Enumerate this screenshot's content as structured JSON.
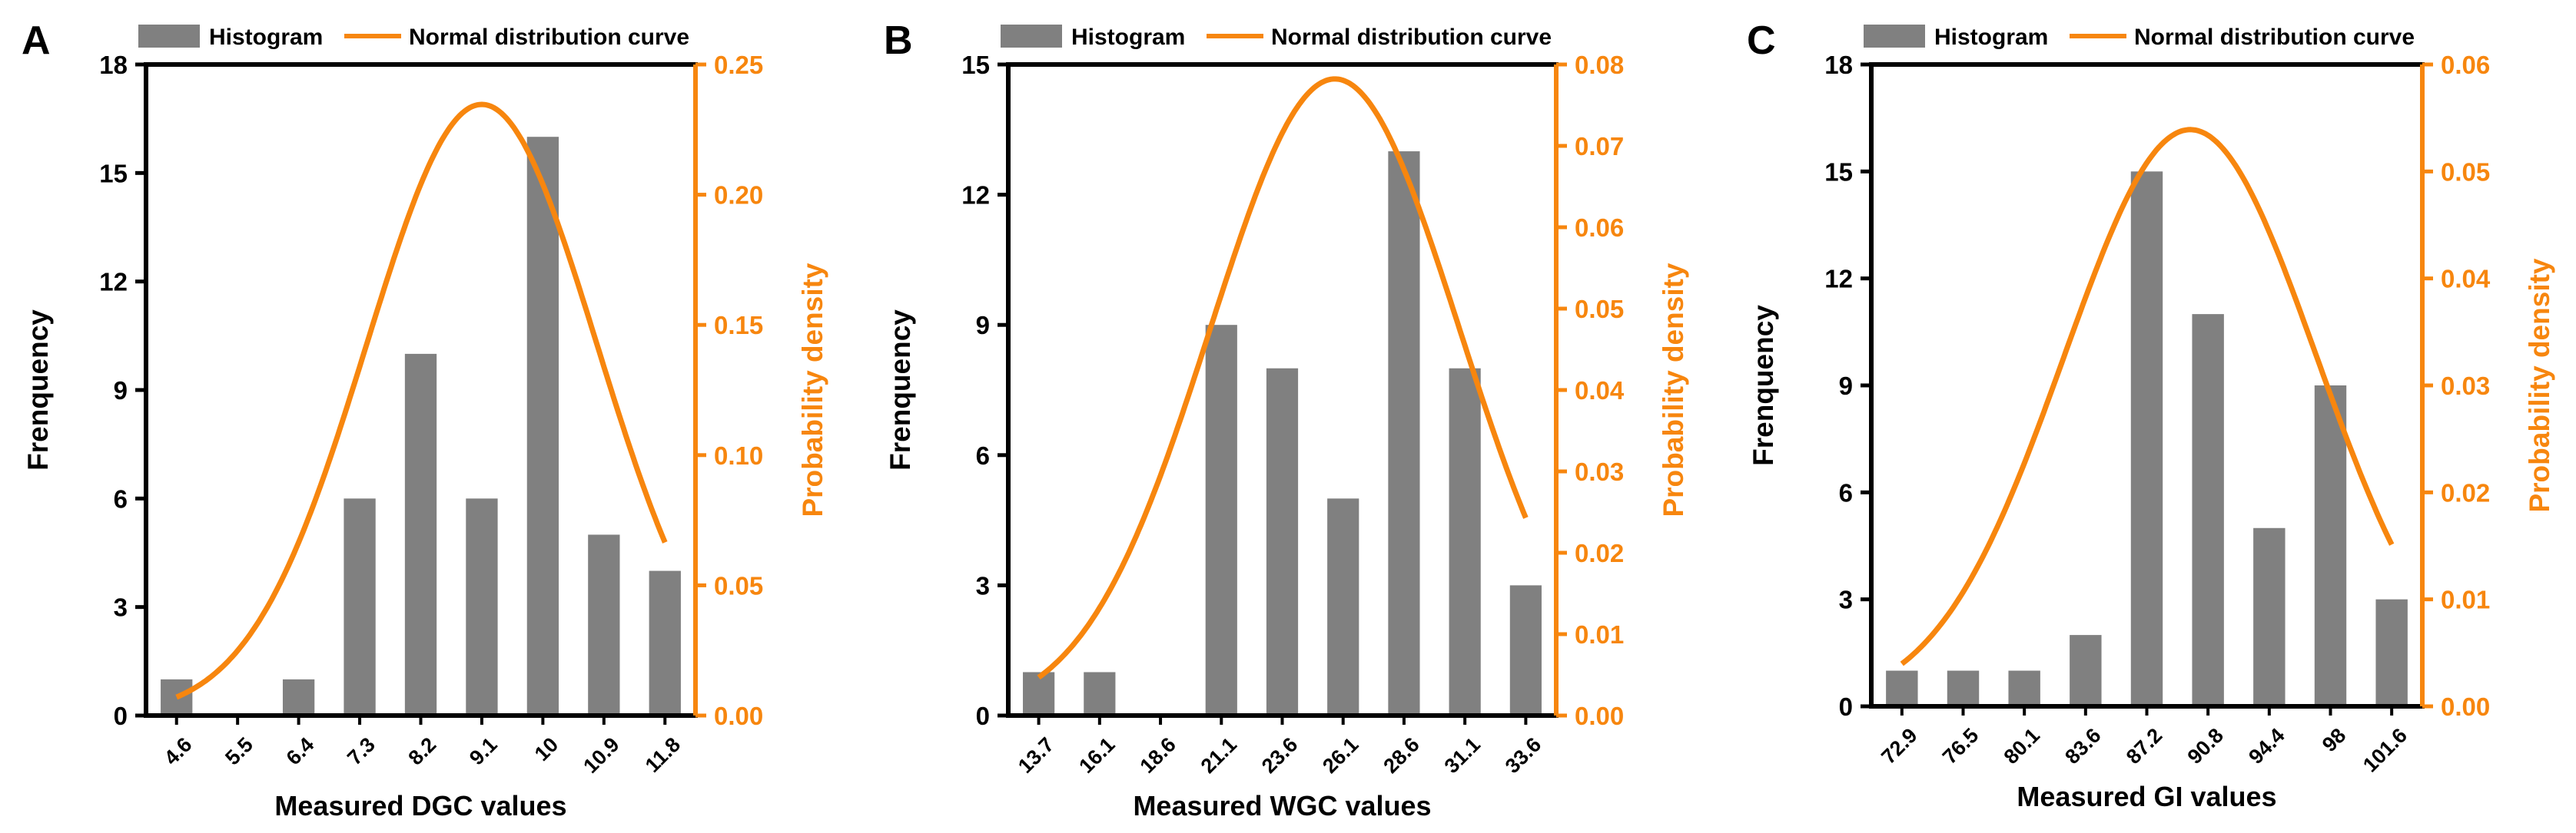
{
  "colors": {
    "bar": "#808080",
    "curve": "#f7860e",
    "axis": "#000000",
    "right_axis": "#f7860e"
  },
  "chart_data": [
    {
      "panel": "A",
      "type": "bar",
      "legend": {
        "histogram": "Histogram",
        "curve": "Normal distribution curve"
      },
      "categories": [
        "4.6",
        "5.5",
        "6.4",
        "7.3",
        "8.2",
        "9.1",
        "10",
        "10.9",
        "11.8"
      ],
      "values": [
        1,
        0,
        1,
        6,
        10,
        6,
        16,
        5,
        4
      ],
      "xlabel": "Measured DGC values",
      "ylabel": "Frenquency",
      "ylabel_right": "Probability density",
      "ylim": [
        0,
        18
      ],
      "yticks": [
        0,
        3,
        6,
        9,
        12,
        15,
        18
      ],
      "ytick_labels": [
        "0",
        "3",
        "6",
        "9",
        "12",
        "15",
        "18"
      ],
      "ylim_right": [
        0,
        0.25
      ],
      "yticks_right": [
        0,
        0.05,
        0.1,
        0.15,
        0.2,
        0.25
      ],
      "ytick_labels_right": [
        "0.00",
        "0.05",
        "0.10",
        "0.15",
        "0.20",
        "0.25"
      ],
      "curve": {
        "mean": 9.1,
        "sd": 1.7,
        "x_start": 4.6,
        "x_end": 11.8
      }
    },
    {
      "panel": "B",
      "type": "bar",
      "legend": {
        "histogram": "Histogram",
        "curve": "Normal distribution curve"
      },
      "categories": [
        "13.7",
        "16.1",
        "18.6",
        "21.1",
        "23.6",
        "26.1",
        "28.6",
        "31.1",
        "33.6"
      ],
      "values": [
        1,
        1,
        0,
        9,
        8,
        5,
        13,
        8,
        3
      ],
      "xlabel": "Measured WGC values",
      "ylabel": "Frenquency",
      "ylabel_right": "Probability density",
      "ylim": [
        0,
        15
      ],
      "yticks": [
        0,
        3,
        6,
        9,
        12,
        15
      ],
      "ytick_labels": [
        "0",
        "3",
        "6",
        "9",
        "12",
        "15"
      ],
      "ylim_right": [
        0,
        0.08
      ],
      "yticks_right": [
        0,
        0.01,
        0.02,
        0.03,
        0.04,
        0.05,
        0.06,
        0.07,
        0.08
      ],
      "ytick_labels_right": [
        "0.00",
        "0.01",
        "0.02",
        "0.03",
        "0.04",
        "0.05",
        "0.06",
        "0.07",
        "0.08"
      ],
      "curve": {
        "mean": 25.8,
        "sd": 5.1,
        "x_start": 13.7,
        "x_end": 33.6
      }
    },
    {
      "panel": "C",
      "type": "bar",
      "legend": {
        "histogram": "Histogram",
        "curve": "Normal distribution curve"
      },
      "categories": [
        "72.9",
        "76.5",
        "80.1",
        "83.6",
        "87.2",
        "90.8",
        "94.4",
        "98",
        "101.6"
      ],
      "values": [
        1,
        1,
        1,
        2,
        15,
        11,
        5,
        9,
        3
      ],
      "xlabel": "Measured GI values",
      "ylabel": "Frenquency",
      "ylabel_right": "Probability density",
      "ylim": [
        0,
        18
      ],
      "yticks": [
        0,
        3,
        6,
        9,
        12,
        15,
        18
      ],
      "ytick_labels": [
        "0",
        "3",
        "6",
        "9",
        "12",
        "15",
        "18"
      ],
      "ylim_right": [
        0,
        0.06
      ],
      "yticks_right": [
        0,
        0.01,
        0.02,
        0.03,
        0.04,
        0.05,
        0.06
      ],
      "ytick_labels_right": [
        "0.00",
        "0.01",
        "0.02",
        "0.03",
        "0.04",
        "0.05",
        "0.06"
      ],
      "curve": {
        "mean": 89.8,
        "sd": 7.4,
        "x_start": 72.9,
        "x_end": 101.6
      }
    }
  ]
}
